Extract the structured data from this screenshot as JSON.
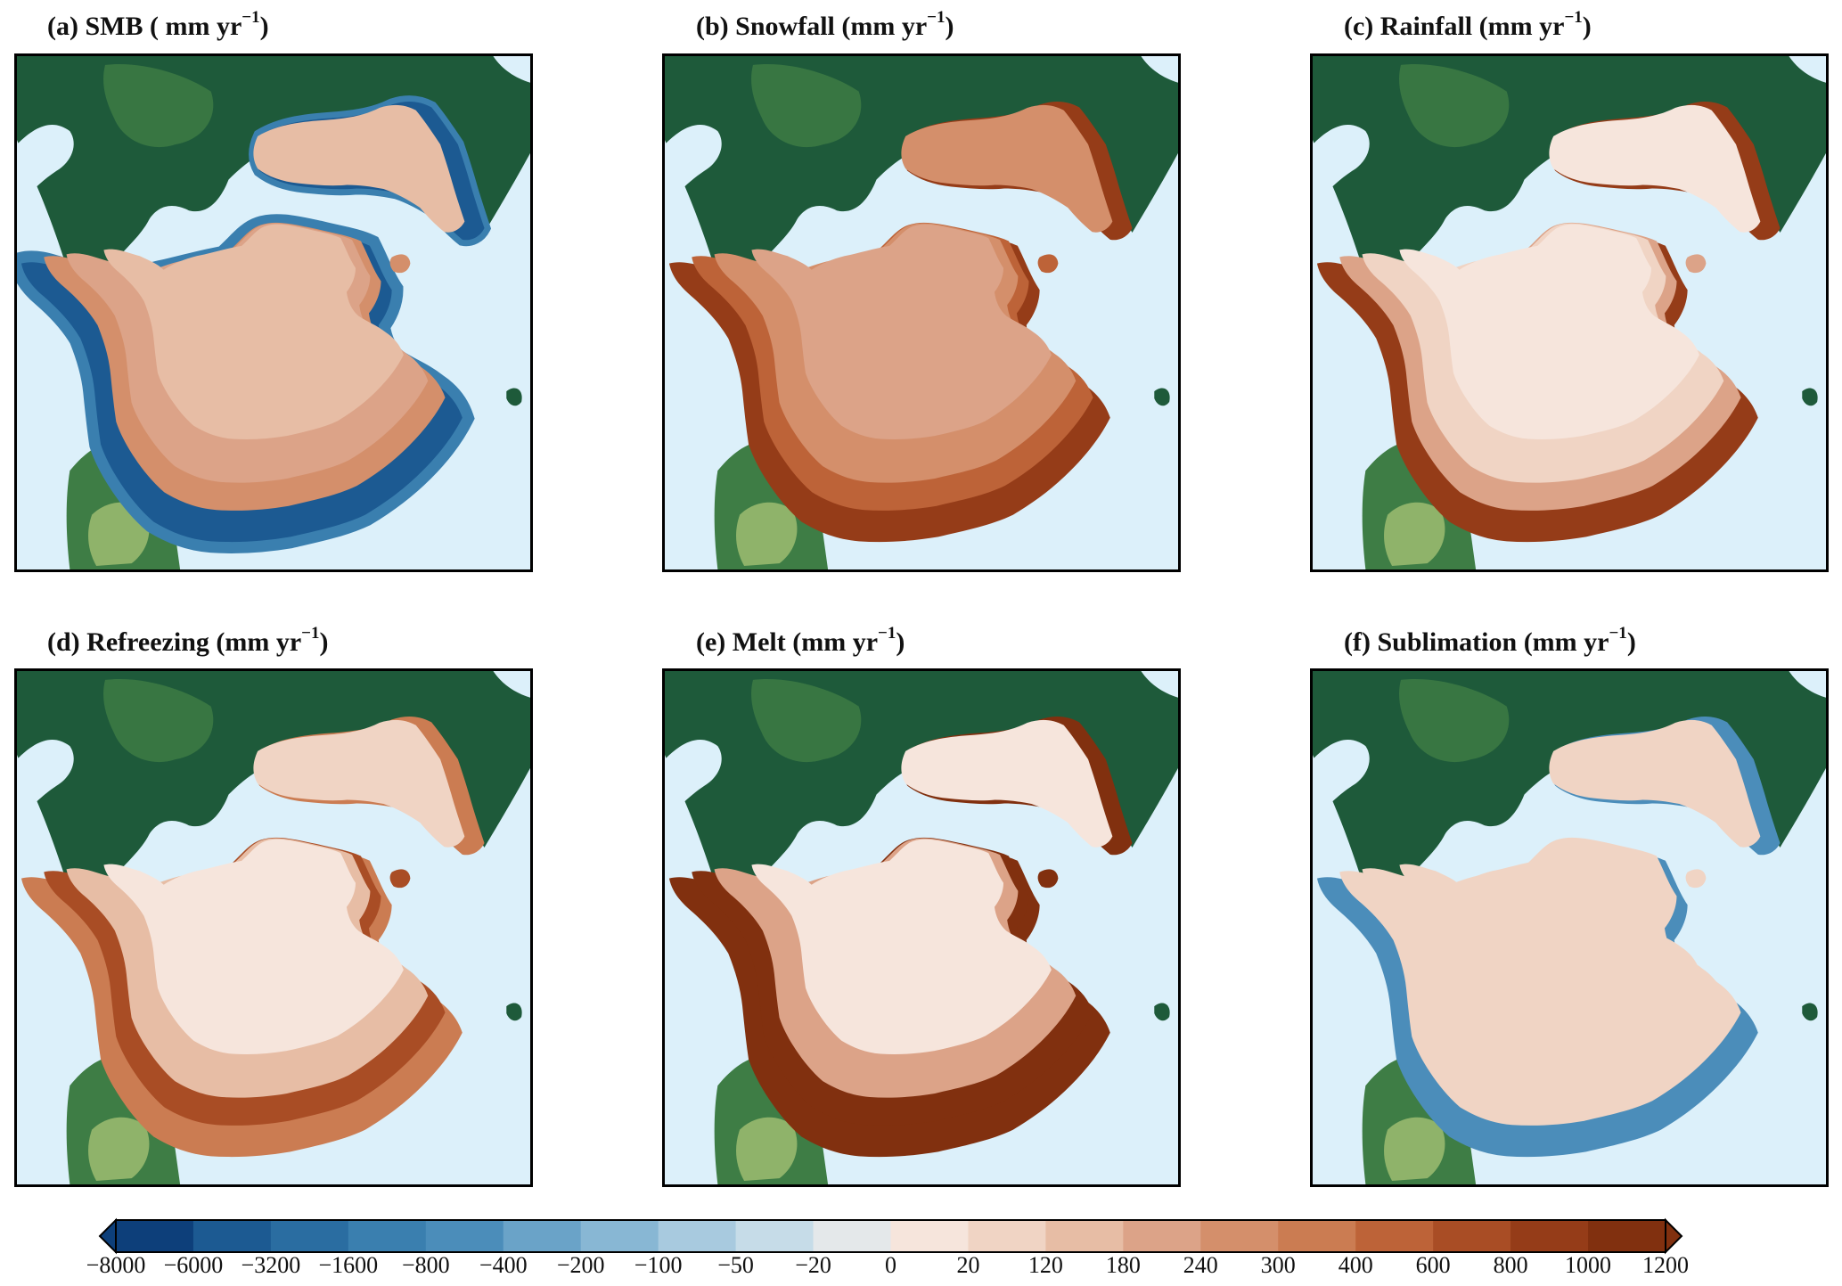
{
  "panels": [
    {
      "id": "a",
      "label": "(a) SMB ( mm yr",
      "sup": "−1",
      "close": ")"
    },
    {
      "id": "b",
      "label": "(b) Snowfall (mm yr",
      "sup": "−1",
      "close": ")"
    },
    {
      "id": "c",
      "label": "(c) Rainfall (mm yr",
      "sup": "−1",
      "close": ")"
    },
    {
      "id": "d",
      "label": "(d) Refreezing (mm yr",
      "sup": "−1",
      "close": ")"
    },
    {
      "id": "e",
      "label": "(e) Melt (mm yr",
      "sup": "−1",
      "close": ")"
    },
    {
      "id": "f",
      "label": "(f) Sublimation (mm yr",
      "sup": "−1",
      "close": ")"
    }
  ],
  "colorbar": {
    "ticks": [
      "−8000",
      "−6000",
      "−3200",
      "−1600",
      "−800",
      "−400",
      "−200",
      "−100",
      "−50",
      "−20",
      "0",
      "20",
      "120",
      "180",
      "240",
      "300",
      "400",
      "600",
      "800",
      "1000",
      "1200"
    ],
    "colors": [
      "#0d3f7a",
      "#1c5a92",
      "#2a6da1",
      "#3a7faf",
      "#4b8dba",
      "#6aa3c8",
      "#88b7d4",
      "#a8cadf",
      "#c6dce8",
      "#e4e8ea",
      "#f6e5dc",
      "#f0d4c4",
      "#e7bda5",
      "#dca388",
      "#d48f6b",
      "#cb7c52",
      "#bd6338",
      "#a94d25",
      "#953c18",
      "#81300f"
    ],
    "extend": "both"
  },
  "map_colors": {
    "ocean": "#dcf0fa",
    "land_dark": "#1e5a3a",
    "land_mid": "#3e7d45",
    "land_light": "#8fb36a"
  }
}
